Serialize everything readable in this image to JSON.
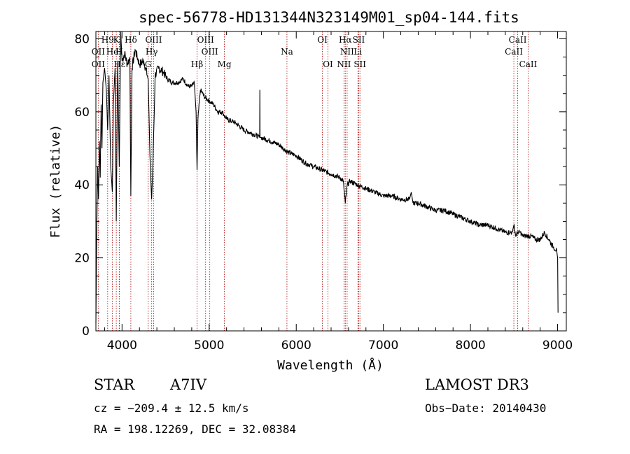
{
  "chart_data": {
    "type": "line",
    "title": "spec-56778-HD131344N323149M01_sp04-144.fits",
    "xlabel": "Wavelength (Å)",
    "ylabel": "Flux (relative)",
    "xlim": [
      3700,
      9100
    ],
    "ylim": [
      0,
      82
    ],
    "xticks": [
      4000,
      5000,
      6000,
      7000,
      8000,
      9000
    ],
    "yticks": [
      0,
      20,
      40,
      60,
      80
    ],
    "grid": false,
    "legend": "none",
    "line_color": "#000000",
    "marker_color": "#b22222",
    "series": [
      {
        "name": "spectrum",
        "x": [
          3700,
          3710,
          3720,
          3730,
          3740,
          3750,
          3760,
          3770,
          3780,
          3800,
          3820,
          3835,
          3850,
          3870,
          3889,
          3900,
          3920,
          3934,
          3950,
          3968,
          3985,
          4000,
          4030,
          4060,
          4090,
          4101,
          4115,
          4150,
          4200,
          4250,
          4300,
          4320,
          4340,
          4355,
          4380,
          4420,
          4470,
          4520,
          4580,
          4640,
          4700,
          4760,
          4800,
          4830,
          4850,
          4861,
          4872,
          4900,
          4950,
          5000,
          5050,
          5100,
          5150,
          5200,
          5300,
          5400,
          5500,
          5580,
          5582,
          5584,
          5600,
          5700,
          5800,
          5900,
          6000,
          6100,
          6200,
          6300,
          6400,
          6500,
          6540,
          6563,
          6585,
          6620,
          6700,
          6800,
          6900,
          7000,
          7100,
          7200,
          7300,
          7320,
          7340,
          7400,
          7500,
          7600,
          7700,
          7800,
          7900,
          8000,
          8100,
          8200,
          8300,
          8400,
          8480,
          8498,
          8520,
          8542,
          8570,
          8600,
          8650,
          8700,
          8750,
          8800,
          8850,
          8900,
          8950,
          8990,
          9000,
          9005
        ],
        "values": [
          2,
          28,
          45,
          36,
          52,
          42,
          62,
          50,
          68,
          72,
          66,
          55,
          70,
          45,
          38,
          62,
          72,
          30,
          74,
          45,
          82,
          74,
          76,
          73,
          75,
          37,
          72,
          77,
          73,
          74,
          69,
          48,
          36,
          46,
          70,
          72,
          71,
          69,
          68,
          68,
          69,
          67,
          67,
          68,
          60,
          44,
          58,
          66,
          64,
          63,
          62,
          60,
          60,
          58,
          57,
          55,
          54,
          53,
          66,
          53,
          53,
          52,
          51,
          49,
          48,
          46,
          45,
          44,
          43,
          42,
          41,
          35,
          40,
          41,
          40,
          39,
          38,
          37,
          37,
          36,
          36,
          38,
          35,
          35,
          34,
          33,
          33,
          32,
          31,
          30,
          29,
          29,
          28,
          27,
          27,
          29,
          26,
          27,
          27,
          26,
          26,
          26,
          25,
          25,
          27,
          25,
          23,
          22,
          20,
          5
        ]
      }
    ],
    "spectral_lines": [
      {
        "label": "H9",
        "x": 3835,
        "row": 1
      },
      {
        "label": "OII",
        "x": 3727,
        "row": 2
      },
      {
        "label": "OII",
        "x": 3727,
        "row": 3
      },
      {
        "label": "K",
        "x": 3934,
        "row": 1
      },
      {
        "label": "He",
        "x": 3889,
        "row": 2
      },
      {
        "label": "Hε",
        "x": 3970,
        "row": 3
      },
      {
        "label": "Hδ",
        "x": 4101,
        "row": 1
      },
      {
        "label": "H",
        "x": 3968,
        "row": 2
      },
      {
        "label": "G",
        "x": 4300,
        "row": 3
      },
      {
        "label": "OIII",
        "x": 4363,
        "row": 1
      },
      {
        "label": "Hγ",
        "x": 4340,
        "row": 2
      },
      {
        "label": "OIII",
        "x": 4959,
        "row": 1
      },
      {
        "label": "OIII",
        "x": 5007,
        "row": 2
      },
      {
        "label": "Hβ",
        "x": 4861,
        "row": 3
      },
      {
        "label": "Mg",
        "x": 5175,
        "row": 3
      },
      {
        "label": "Na",
        "x": 5893,
        "row": 2
      },
      {
        "label": "OI",
        "x": 6300,
        "row": 1
      },
      {
        "label": "OI",
        "x": 6364,
        "row": 3
      },
      {
        "label": "Hα",
        "x": 6563,
        "row": 1
      },
      {
        "label": "SII",
        "x": 6717,
        "row": 1
      },
      {
        "label": "NII",
        "x": 6584,
        "row": 2
      },
      {
        "label": "Li",
        "x": 6708,
        "row": 2
      },
      {
        "label": "NII",
        "x": 6548,
        "row": 3
      },
      {
        "label": "SII",
        "x": 6731,
        "row": 3
      },
      {
        "label": "CaII",
        "x": 8542,
        "row": 1
      },
      {
        "label": "CaII",
        "x": 8498,
        "row": 2
      },
      {
        "label": "CaII",
        "x": 8662,
        "row": 3
      }
    ],
    "annotations": {
      "object_type": "STAR",
      "spectral_class": "A7IV",
      "survey": "LAMOST DR3",
      "redshift": "cz = −209.4 ± 12.5 km/s",
      "obs_date": "Obs−Date: 20140430",
      "coords": "RA = 198.12269, DEC =  32.08384"
    }
  }
}
